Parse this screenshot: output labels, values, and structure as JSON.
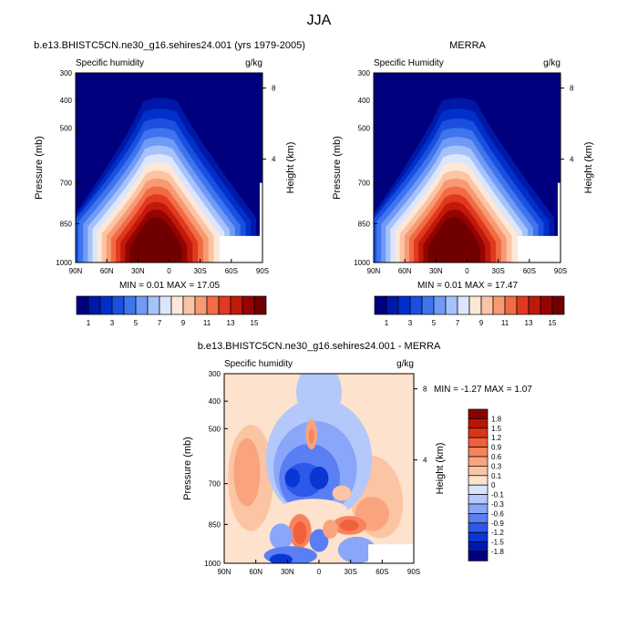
{
  "page": {
    "title": "JJA"
  },
  "colors": {
    "moisture_scale": [
      "#00007f",
      "#0018a8",
      "#0030c8",
      "#1a4fe0",
      "#3e74ee",
      "#6f9af5",
      "#a6c2fa",
      "#dbe6fd",
      "#fde8d8",
      "#fbc4a5",
      "#f79a72",
      "#f16b45",
      "#e0391f",
      "#c01909",
      "#960303",
      "#700000"
    ],
    "diff_scale": [
      "#00007f",
      "#0018b0",
      "#0a36d4",
      "#2d58ea",
      "#5a7ef3",
      "#8aa6f8",
      "#b4c8fa",
      "#d8e4fd",
      "#fde2cd",
      "#fbc4a3",
      "#f9a47f",
      "#f7835e",
      "#f0603a",
      "#d93517",
      "#b81605",
      "#8b0000"
    ]
  },
  "chart_data": [
    {
      "type": "heatmap",
      "title": "b.e13.BHISTC5CN.ne30_g16.sehires24.001 (yrs 1979-2005)",
      "left_label": "Specific humidity",
      "right_label": "g/kg",
      "xlabel": "",
      "ylabel": "Pressure (mb)",
      "y2label": "Height (km)",
      "x_ticks": [
        "90N",
        "60N",
        "30N",
        "0",
        "30S",
        "60S",
        "90S"
      ],
      "y_ticks": [
        "300",
        "400",
        "500",
        "700",
        "850",
        "1000"
      ],
      "y2_ticks": [
        "8",
        "4"
      ],
      "stats": "MIN =  0.01  MAX =  17.05",
      "peak_value": 17.05
    },
    {
      "type": "heatmap",
      "title": "MERRA",
      "left_label": "Specific Humidity",
      "right_label": "g/kg",
      "xlabel": "",
      "ylabel": "Pressure (mb)",
      "y2label": "Height (km)",
      "x_ticks": [
        "90N",
        "60N",
        "30N",
        "0",
        "30S",
        "60S",
        "90S"
      ],
      "y_ticks": [
        "300",
        "400",
        "500",
        "700",
        "850",
        "1000"
      ],
      "y2_ticks": [
        "8",
        "4"
      ],
      "stats": "MIN =  0.01  MAX =  17.47",
      "peak_value": 17.47
    },
    {
      "type": "heatmap",
      "title": "b.e13.BHISTC5CN.ne30_g16.sehires24.001 - MERRA",
      "left_label": "Specific humidity",
      "right_label": "g/kg",
      "xlabel": "",
      "ylabel": "Pressure (mb)",
      "y2label": "Height (km)",
      "x_ticks": [
        "90N",
        "60N",
        "30N",
        "0",
        "30S",
        "60S",
        "90S"
      ],
      "y_ticks": [
        "300",
        "400",
        "500",
        "700",
        "850",
        "1000"
      ],
      "y2_ticks": [
        "8",
        "4"
      ],
      "stats": "MIN = -1.27  MAX =  1.07"
    }
  ],
  "colorbars": {
    "moisture": {
      "labels": [
        "1",
        "3",
        "5",
        "7",
        "9",
        "11",
        "13",
        "15"
      ]
    },
    "difference": {
      "labels": [
        "1.8",
        "1.5",
        "1.2",
        "0.9",
        "0.6",
        "0.3",
        "0.1",
        "0",
        "-0.1",
        "-0.3",
        "-0.6",
        "-0.9",
        "-1.2",
        "-1.5",
        "-1.8"
      ]
    }
  }
}
